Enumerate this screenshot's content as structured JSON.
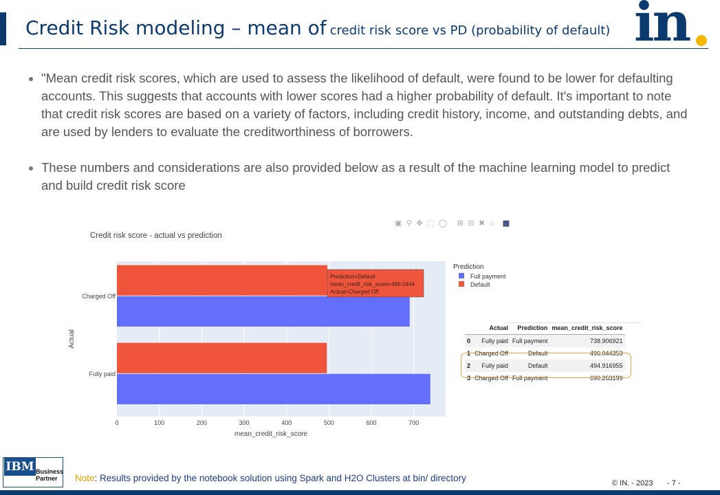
{
  "slide": {
    "title_main": "Credit Risk modeling – mean of",
    "title_sub": "credit risk score vs PD (probability of default)",
    "logo_text": "in",
    "bullets": [
      "\"Mean credit risk scores, which are used to assess the likelihood of default, were found to be lower for defaulting accounts. This suggests that accounts with lower scores had a higher probability of default. It's important to note that credit risk scores are based on a variety of factors, including credit history, income, and outstanding debts, and are used by lenders to evaluate the creditworthiness of borrowers.",
      "These numbers and considerations are also provided below as a result of the machine learning model to predict and build credit risk score"
    ],
    "note_label": "Note",
    "note_text": ": Results provided by the notebook solution using Spark and H2O Clusters at bin/ directory",
    "copyright": "© IN. - 2023",
    "page_number": "- 7 -",
    "ibm_logo": "IBM",
    "ibm_line1": "Business",
    "ibm_line2": "Partner"
  },
  "modebar": {
    "icons": [
      "camera-icon",
      "zoom-icon",
      "pan-icon",
      "box-select-icon",
      "lasso-icon",
      "zoom-in-icon",
      "zoom-out-icon",
      "autoscale-icon",
      "reset-axes-icon",
      "plotly-logo-icon"
    ]
  },
  "chart_data": {
    "type": "bar",
    "orientation": "horizontal",
    "title": "Credit risk score - actual vs prediction",
    "xlabel": "mean_credit_risk_score",
    "ylabel": "Actual",
    "categories": [
      "Charged Off",
      "Fully paid"
    ],
    "series": [
      {
        "name": "Full payment",
        "color": "#636efa",
        "values": [
          690.263199,
          738.906921
        ]
      },
      {
        "name": "Default",
        "color": "#ef553b",
        "values": [
          496.044353,
          494.916955
        ]
      }
    ],
    "xlim": [
      0,
      775
    ],
    "xticks": [
      0,
      100,
      200,
      300,
      400,
      500,
      600,
      700
    ],
    "legend_title": "Prediction",
    "legend_position": "right",
    "grid": true,
    "tooltip": {
      "line1": "Prediction=Default",
      "line2": "mean_credit_risk_score=496.0444",
      "line3": "Actual=Charged Off"
    }
  },
  "table": {
    "headers": [
      "",
      "Actual",
      "Prediction",
      "mean_credit_risk_score"
    ],
    "rows": [
      [
        "0",
        "Fully paid",
        "Full payment",
        "738.906921"
      ],
      [
        "1",
        "Charged Off",
        "Default",
        "496.044353"
      ],
      [
        "2",
        "Fully paid",
        "Default",
        "494.916955"
      ],
      [
        "3",
        "Charged Off",
        "Full payment",
        "690.263199"
      ]
    ]
  }
}
